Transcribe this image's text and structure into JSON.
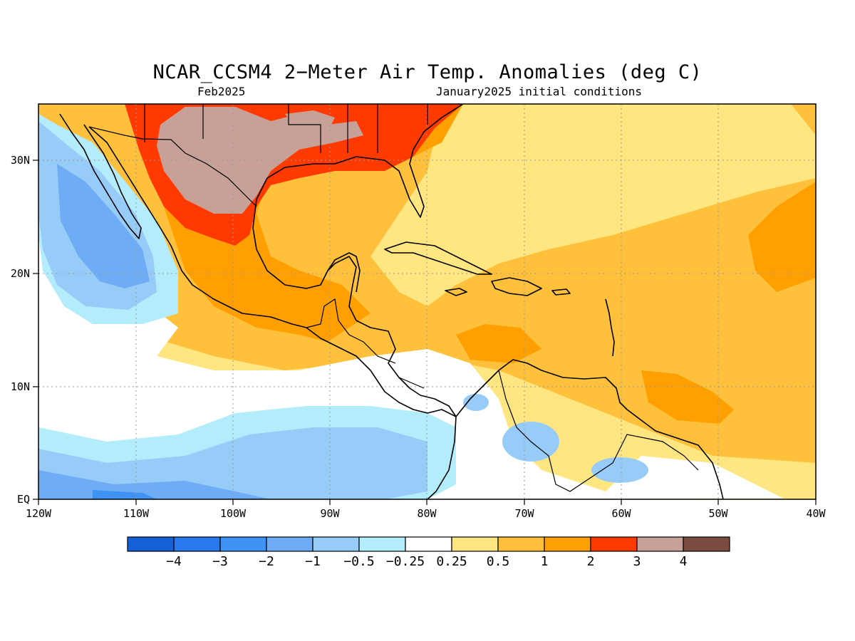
{
  "map": {
    "title": "NCAR_CCSM4 2−Meter Air Temp. Anomalies (deg C)",
    "valid_month": "Feb2025",
    "init_conditions": "January2025 initial conditions",
    "lon_labels": [
      "120W",
      "110W",
      "100W",
      "90W",
      "80W",
      "70W",
      "60W",
      "50W",
      "40W"
    ],
    "lat_labels": [
      "30N",
      "20N",
      "10N",
      "EQ"
    ],
    "extent": {
      "lon": [
        -120,
        -40
      ],
      "lat": [
        0,
        35
      ]
    }
  },
  "colorbar": {
    "labels": [
      "−4",
      "−3",
      "−2",
      "−1",
      "−0.5",
      "−0.25",
      "0.25",
      "0.5",
      "1",
      "2",
      "3",
      "4"
    ],
    "colors": [
      "#1560d6",
      "#2a78ee",
      "#3e92f2",
      "#6eadf6",
      "#98ccf8",
      "#b3ecfb",
      "#ffffff",
      "#ffe680",
      "#ffc13c",
      "#ffa000",
      "#ff3a00",
      "#c7a097",
      "#7a4b3e"
    ]
  },
  "palette": {
    "ocean_default": "#ffffff",
    "coast": "#000000",
    "grid": "#888888"
  }
}
